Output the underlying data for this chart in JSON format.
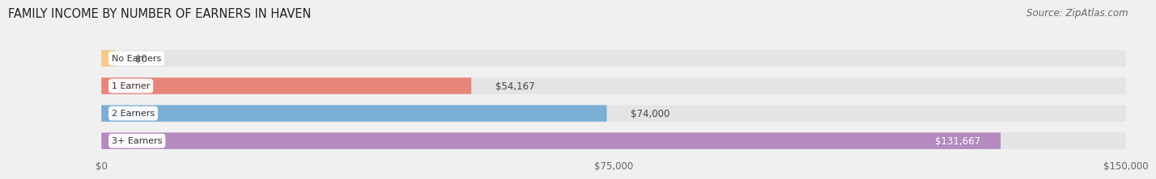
{
  "title": "FAMILY INCOME BY NUMBER OF EARNERS IN HAVEN",
  "source": "Source: ZipAtlas.com",
  "categories": [
    "No Earners",
    "1 Earner",
    "2 Earners",
    "3+ Earners"
  ],
  "values": [
    0,
    54167,
    74000,
    131667
  ],
  "bar_colors": [
    "#f5c98a",
    "#e8857a",
    "#7baed4",
    "#b48abf"
  ],
  "bar_labels": [
    "$0",
    "$54,167",
    "$74,000",
    "$131,667"
  ],
  "label_colors": [
    "#555555",
    "#555555",
    "#555555",
    "#ffffff"
  ],
  "xlim": [
    0,
    150000
  ],
  "xticks": [
    0,
    75000,
    150000
  ],
  "xticklabels": [
    "$0",
    "$75,000",
    "$150,000"
  ],
  "background_color": "#f0f0f0",
  "bar_bg_color": "#e4e4e4",
  "title_fontsize": 10.5,
  "source_fontsize": 8.5
}
